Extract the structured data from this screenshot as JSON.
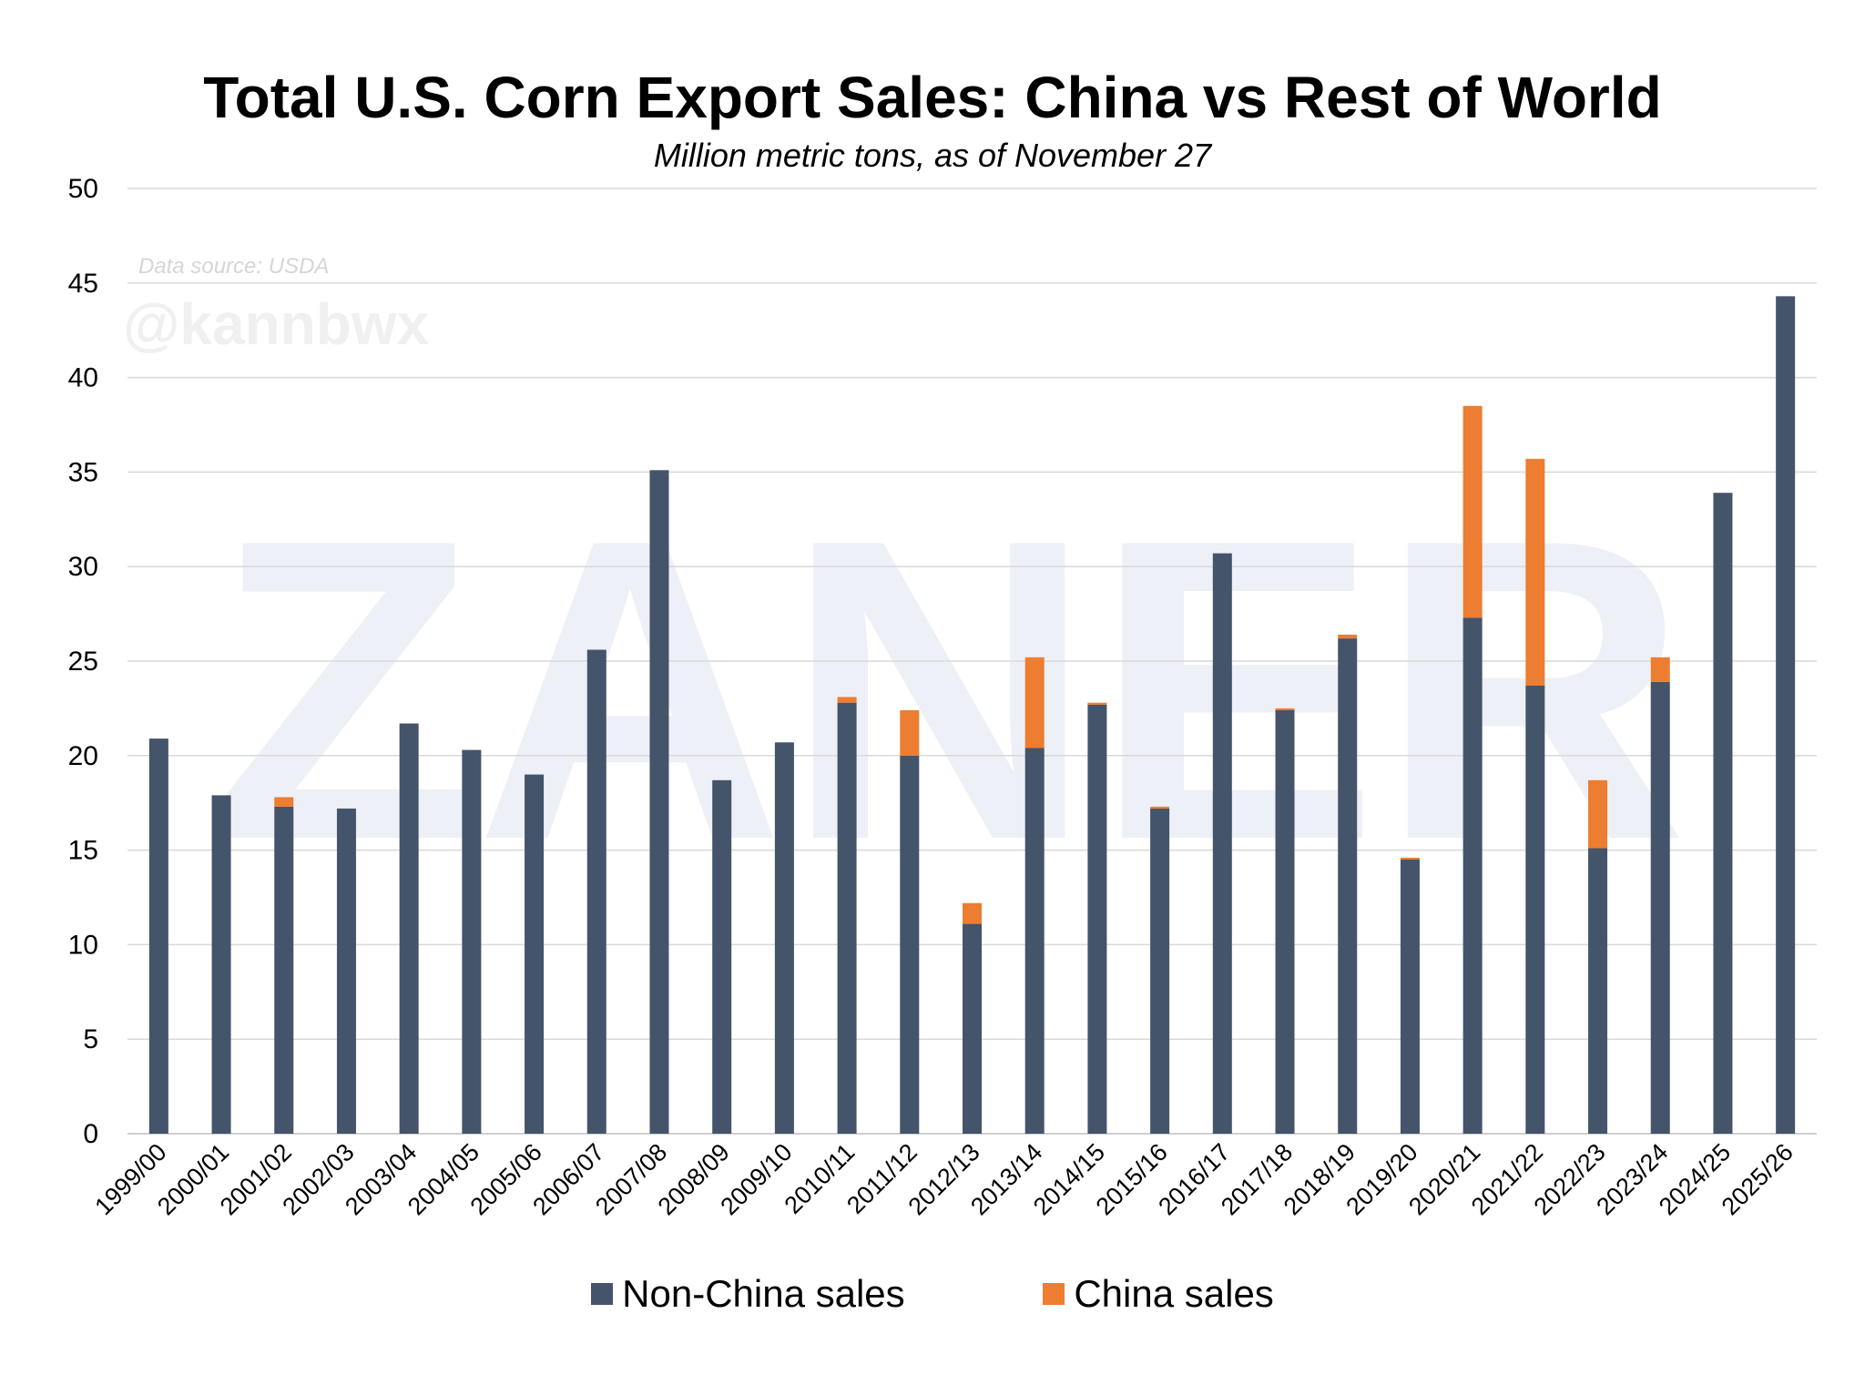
{
  "chart_data": {
    "type": "bar",
    "stacked": true,
    "title": "Total U.S. Corn Export Sales: China vs Rest of World",
    "subtitle": "Million metric tons, as of November 27",
    "source_note": "Data source: USDA",
    "handle": "@kannbwx",
    "watermark": "ZANER",
    "xlabel": "",
    "ylabel": "",
    "ylim": [
      0,
      50
    ],
    "yticks": [
      0,
      5,
      10,
      15,
      20,
      25,
      30,
      35,
      40,
      45,
      50
    ],
    "grid": true,
    "legend_position": "bottom",
    "categories": [
      "1999/00",
      "2000/01",
      "2001/02",
      "2002/03",
      "2003/04",
      "2004/05",
      "2005/06",
      "2006/07",
      "2007/08",
      "2008/09",
      "2009/10",
      "2010/11",
      "2011/12",
      "2012/13",
      "2013/14",
      "2014/15",
      "2015/16",
      "2016/17",
      "2017/18",
      "2018/19",
      "2019/20",
      "2020/21",
      "2021/22",
      "2022/23",
      "2023/24",
      "2024/25",
      "2025/26"
    ],
    "series": [
      {
        "name": "Non-China sales",
        "color": "#44546a",
        "values": [
          20.9,
          17.9,
          17.3,
          17.2,
          21.7,
          20.3,
          19.0,
          25.6,
          35.1,
          18.7,
          20.7,
          22.8,
          20.0,
          11.1,
          20.4,
          22.7,
          17.2,
          30.7,
          22.4,
          26.2,
          14.5,
          27.3,
          23.7,
          15.1,
          23.9,
          33.9,
          44.3
        ]
      },
      {
        "name": "China sales",
        "color": "#ed7d31",
        "values": [
          0,
          0,
          0.5,
          0,
          0,
          0,
          0,
          0,
          0,
          0,
          0,
          0.3,
          2.4,
          1.1,
          4.8,
          0.1,
          0.1,
          0,
          0.1,
          0.2,
          0.1,
          11.2,
          12.0,
          3.6,
          1.3,
          0,
          0
        ]
      }
    ]
  }
}
